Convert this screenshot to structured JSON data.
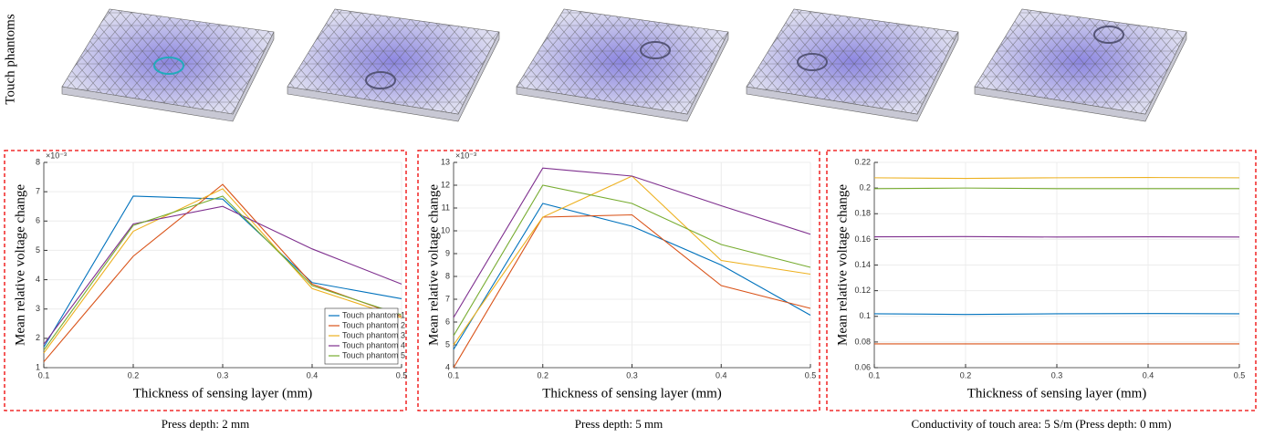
{
  "phantom_label": "Touch phantoms",
  "chart_data": [
    {
      "type": "line",
      "x_label": "Thickness of sensing layer (mm)",
      "y_label": "Mean relative voltage change",
      "y_exponent_label": "×10⁻³",
      "caption": "Press depth: 2 mm",
      "x": [
        0.1,
        0.2,
        0.3,
        0.4,
        0.5
      ],
      "xlim": [
        0.1,
        0.5
      ],
      "xticks": [
        0.1,
        0.2,
        0.3,
        0.4,
        0.5
      ],
      "ylim": [
        1,
        8
      ],
      "yticks": [
        1,
        2,
        3,
        4,
        5,
        6,
        7,
        8
      ],
      "grid": true,
      "legend": "lower right",
      "series": [
        {
          "name": "Touch phantom 1",
          "color": "#0072BD",
          "values": [
            1.7,
            6.85,
            6.75,
            3.9,
            3.35
          ]
        },
        {
          "name": "Touch phantom 2",
          "color": "#D95319",
          "values": [
            1.2,
            4.8,
            7.25,
            3.85,
            2.75
          ]
        },
        {
          "name": "Touch phantom 3",
          "color": "#EDB120",
          "values": [
            1.5,
            5.65,
            7.1,
            3.7,
            2.7
          ]
        },
        {
          "name": "Touch phantom 4",
          "color": "#7E2F8E",
          "values": [
            1.8,
            5.9,
            6.5,
            5.05,
            3.85
          ]
        },
        {
          "name": "Touch phantom 5",
          "color": "#77AC30",
          "values": [
            1.6,
            5.85,
            6.85,
            3.8,
            2.8
          ]
        }
      ]
    },
    {
      "type": "line",
      "x_label": "Thickness of sensing layer (mm)",
      "y_label": "Mean relative voltage change",
      "y_exponent_label": "×10⁻³",
      "caption": "Press depth: 5 mm",
      "x": [
        0.1,
        0.2,
        0.3,
        0.4,
        0.5
      ],
      "xlim": [
        0.1,
        0.5
      ],
      "xticks": [
        0.1,
        0.2,
        0.3,
        0.4,
        0.5
      ],
      "ylim": [
        4,
        13
      ],
      "yticks": [
        4,
        5,
        6,
        7,
        8,
        9,
        10,
        11,
        12,
        13
      ],
      "grid": true,
      "series": [
        {
          "color": "#0072BD",
          "values": [
            4.8,
            11.2,
            10.2,
            8.5,
            6.3
          ]
        },
        {
          "color": "#D95319",
          "values": [
            4.0,
            10.6,
            10.7,
            7.6,
            6.6
          ]
        },
        {
          "color": "#EDB120",
          "values": [
            5.0,
            10.6,
            12.4,
            8.7,
            8.1
          ]
        },
        {
          "color": "#7E2F8E",
          "values": [
            6.2,
            12.75,
            12.4,
            11.1,
            9.85
          ]
        },
        {
          "color": "#77AC30",
          "values": [
            5.4,
            12.0,
            11.2,
            9.4,
            8.4
          ]
        }
      ]
    },
    {
      "type": "line",
      "x_label": "Thickness of sensing layer (mm)",
      "y_label": "Mean relative voltage change",
      "caption": "Conductivity of touch area: 5 S/m (Press depth: 0 mm)",
      "x": [
        0.1,
        0.2,
        0.3,
        0.4,
        0.5
      ],
      "xlim": [
        0.1,
        0.5
      ],
      "xticks": [
        0.1,
        0.2,
        0.3,
        0.4,
        0.5
      ],
      "ylim": [
        0.06,
        0.22
      ],
      "yticks": [
        0.06,
        0.08,
        0.1,
        0.12,
        0.14,
        0.16,
        0.18,
        0.2,
        0.22
      ],
      "grid": true,
      "series": [
        {
          "color": "#0072BD",
          "values": [
            0.102,
            0.1015,
            0.102,
            0.1022,
            0.102
          ]
        },
        {
          "color": "#D95319",
          "values": [
            0.0785,
            0.0785,
            0.0785,
            0.0785,
            0.0785
          ]
        },
        {
          "color": "#EDB120",
          "values": [
            0.208,
            0.2075,
            0.208,
            0.2082,
            0.208
          ]
        },
        {
          "color": "#7E2F8E",
          "values": [
            0.162,
            0.1622,
            0.1618,
            0.162,
            0.1618
          ]
        },
        {
          "color": "#77AC30",
          "values": [
            0.1995,
            0.2,
            0.1995,
            0.1995,
            0.1995
          ]
        }
      ]
    }
  ]
}
